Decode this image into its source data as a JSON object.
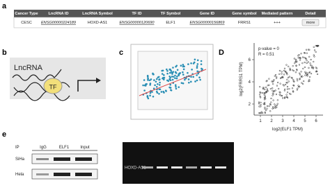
{
  "panels": {
    "a": "a",
    "b": "b",
    "c": "c",
    "d": "D",
    "e": "e"
  },
  "table": {
    "header": [
      "Cancer Type",
      "LncRNA ID",
      "LncRNA Symbol",
      "TF ID",
      "TF Symbol",
      "Gene ID",
      "Gene symbol",
      "Mediated pattern",
      "Detail"
    ],
    "rows": [
      [
        "CESC",
        "ENSG00000224189",
        "HOXD-AS1",
        "ENSG00000120690",
        "ELF1",
        "ENSG00000156869",
        "FRRS1",
        "+++",
        "more"
      ]
    ]
  },
  "diagram": {
    "lncrna": "LncRNA",
    "tf": "TF"
  },
  "scatter_d": {
    "annotations": [
      "p-value = 0",
      "R = 0.51"
    ],
    "xlabel": "log2(ELF1 TPM)",
    "ylabel": "log2(FRRS1 TPM)",
    "xticks": [
      "1",
      "2",
      "3",
      "4",
      "5",
      "6"
    ],
    "yticks": [
      "2",
      "4",
      "6"
    ]
  },
  "blot": {
    "ip": "IP",
    "lanes": [
      "IgG",
      "ELF1",
      "Input"
    ],
    "cells": [
      "SiHa",
      "Hela"
    ]
  },
  "gel": {
    "label": "HOXD-AS1"
  }
}
